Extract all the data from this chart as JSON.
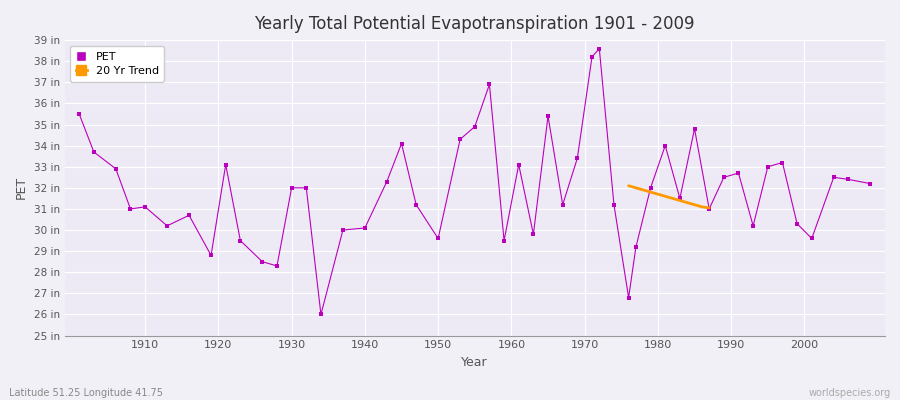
{
  "title": "Yearly Total Potential Evapotranspiration 1901 - 2009",
  "xlabel": "Year",
  "ylabel": "PET",
  "subtitle_left": "Latitude 51.25 Longitude 41.75",
  "subtitle_right": "worldspecies.org",
  "pet_color": "#bb00bb",
  "trend_color": "#ff9900",
  "background_color": "#f2f0f7",
  "plot_bg": "#edeaf5",
  "grid_color": "#ffffff",
  "years": [
    1901,
    1903,
    1906,
    1908,
    1910,
    1913,
    1916,
    1919,
    1921,
    1923,
    1926,
    1928,
    1930,
    1932,
    1934,
    1937,
    1940,
    1943,
    1945,
    1947,
    1950,
    1953,
    1955,
    1957,
    1959,
    1961,
    1963,
    1965,
    1967,
    1969,
    1971,
    1972,
    1974,
    1976,
    1977,
    1979,
    1981,
    1983,
    1985,
    1987,
    1989,
    1991,
    1993,
    1995,
    1997,
    1999,
    2001,
    2004,
    2006,
    2009
  ],
  "pet_values": [
    35.5,
    33.7,
    32.9,
    31.0,
    31.1,
    30.2,
    30.7,
    28.8,
    33.1,
    29.5,
    28.5,
    28.3,
    32.0,
    32.0,
    26.0,
    30.0,
    30.1,
    32.3,
    34.1,
    31.2,
    29.6,
    34.3,
    34.9,
    36.9,
    29.5,
    33.1,
    29.8,
    35.4,
    31.2,
    33.4,
    38.2,
    38.6,
    31.2,
    26.8,
    29.2,
    32.0,
    34.0,
    31.5,
    34.8,
    31.0,
    32.5,
    32.7,
    30.2,
    33.0,
    33.2,
    30.3,
    29.6,
    32.5,
    32.4,
    32.2
  ],
  "trend_years": [
    1976,
    1977,
    1978,
    1979,
    1980,
    1981,
    1982,
    1983,
    1984,
    1985,
    1986,
    1987
  ],
  "trend_values": [
    32.1,
    32.0,
    31.9,
    31.8,
    31.7,
    31.6,
    31.5,
    31.4,
    31.3,
    31.2,
    31.1,
    31.05
  ],
  "xlim": [
    1899,
    2011
  ],
  "ylim_bottom": 25,
  "ylim_top": 39,
  "xticks": [
    1910,
    1920,
    1930,
    1940,
    1950,
    1960,
    1970,
    1980,
    1990,
    2000
  ]
}
